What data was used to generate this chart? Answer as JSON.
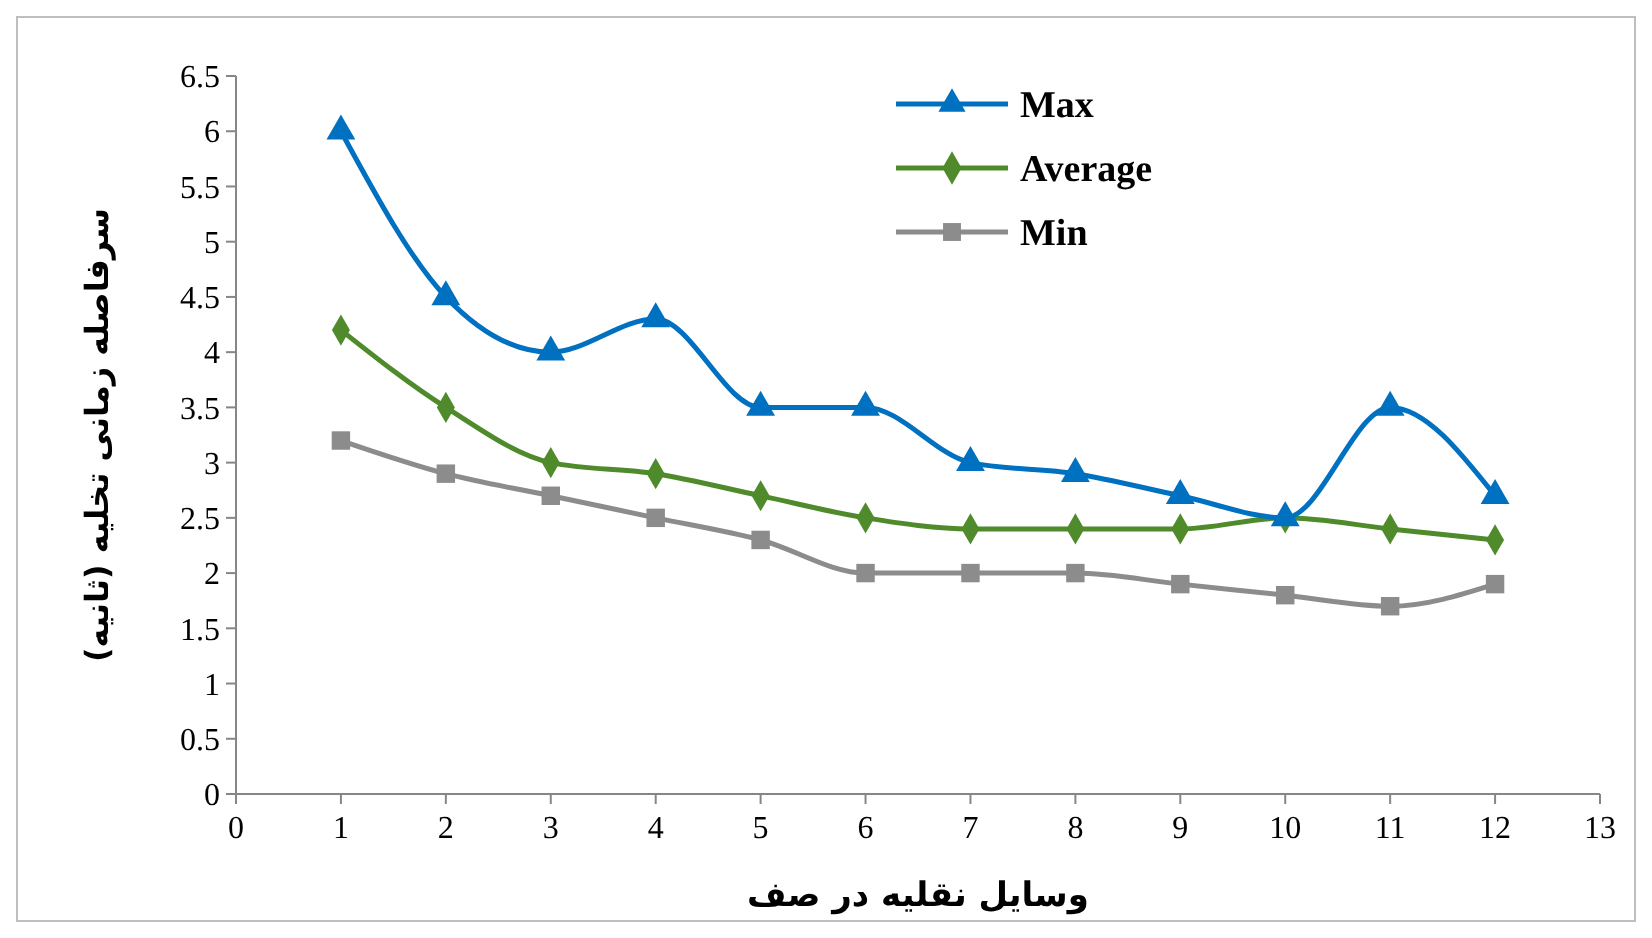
{
  "chart_data": {
    "type": "line",
    "xlabel": "وسایل نقلیه در صف",
    "ylabel": "سرفاصله زمانی تخلیه (ثانیه)",
    "x": [
      1,
      2,
      3,
      4,
      5,
      6,
      7,
      8,
      9,
      10,
      11,
      12
    ],
    "xlim": [
      0,
      13
    ],
    "xticks": [
      0,
      1,
      2,
      3,
      4,
      5,
      6,
      7,
      8,
      9,
      10,
      11,
      12,
      13
    ],
    "ylim": [
      0,
      6.5
    ],
    "yticks": [
      0,
      0.5,
      1,
      1.5,
      2,
      2.5,
      3,
      3.5,
      4,
      4.5,
      5,
      5.5,
      6,
      6.5
    ],
    "grid": false,
    "legend": "top",
    "line_style": "solid",
    "series": [
      {
        "name": "Max",
        "color": "#0070c0",
        "marker": "triangle",
        "values": [
          6,
          4.5,
          4,
          4.3,
          3.5,
          3.5,
          3,
          2.9,
          2.7,
          2.5,
          3.5,
          2.7
        ]
      },
      {
        "name": "Average",
        "color": "#4f8a2b",
        "marker": "diamond",
        "values": [
          4.2,
          3.5,
          3,
          2.9,
          2.7,
          2.5,
          2.4,
          2.4,
          2.4,
          2.5,
          2.4,
          2.3
        ]
      },
      {
        "name": "Min",
        "color": "#8c8c8c",
        "marker": "square",
        "values": [
          3.2,
          2.9,
          2.7,
          2.5,
          2.3,
          2,
          2,
          2,
          1.9,
          1.8,
          1.7,
          1.9
        ]
      }
    ]
  }
}
